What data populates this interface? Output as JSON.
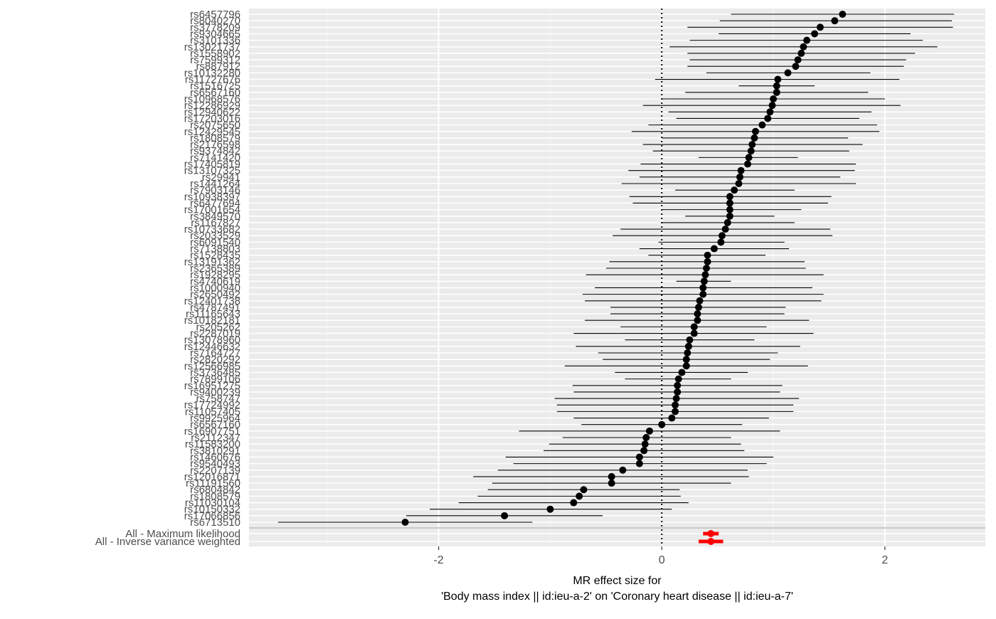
{
  "chart_data": {
    "type": "forest",
    "title": "",
    "xlabel_lines": [
      "MR effect size for",
      "'Body mass index || id:ieu-a-2' on 'Coronary heart disease || id:ieu-a-7'"
    ],
    "ylabel": "",
    "xlim": [
      -3.7,
      2.9
    ],
    "xticks": [
      -2,
      0,
      2
    ],
    "xtick_labels": [
      "-2",
      "0",
      "2"
    ],
    "reference_line": 0,
    "grid": true,
    "colors": {
      "snp": "#000000",
      "summary": "#ff0000",
      "panel": "#ebebeb",
      "grid": "#ffffff",
      "divider": "#c8c8c8",
      "tick_text": "#4d4d4d"
    },
    "snps": [
      {
        "label": "rs6457796",
        "b": 1.62,
        "lo": 0.62,
        "hi": 2.62
      },
      {
        "label": "rs8040270",
        "b": 1.55,
        "lo": 0.52,
        "hi": 2.6
      },
      {
        "label": "rs3778209",
        "b": 1.42,
        "lo": 0.23,
        "hi": 2.61
      },
      {
        "label": "rs9304665",
        "b": 1.37,
        "lo": 0.51,
        "hi": 2.23
      },
      {
        "label": "rs3101336",
        "b": 1.3,
        "lo": 0.25,
        "hi": 2.34
      },
      {
        "label": "rs13021737",
        "b": 1.27,
        "lo": 0.07,
        "hi": 2.47
      },
      {
        "label": "rs1558902",
        "b": 1.25,
        "lo": 0.23,
        "hi": 2.27
      },
      {
        "label": "rs7599312",
        "b": 1.22,
        "lo": 0.25,
        "hi": 2.19
      },
      {
        "label": "rs887912",
        "b": 1.2,
        "lo": 0.23,
        "hi": 2.17
      },
      {
        "label": "rs10132280",
        "b": 1.13,
        "lo": 0.4,
        "hi": 1.87
      },
      {
        "label": "rs11727676",
        "b": 1.04,
        "lo": -0.06,
        "hi": 2.13
      },
      {
        "label": "rs1516725",
        "b": 1.03,
        "lo": 0.69,
        "hi": 1.37
      },
      {
        "label": "rs6567160",
        "b": 1.03,
        "lo": 0.21,
        "hi": 1.85
      },
      {
        "label": "rs10968576",
        "b": 1.0,
        "lo": 0.0,
        "hi": 2.0
      },
      {
        "label": "rs12286929",
        "b": 0.99,
        "lo": -0.17,
        "hi": 2.14
      },
      {
        "label": "rs12940622",
        "b": 0.97,
        "lo": 0.06,
        "hi": 1.88
      },
      {
        "label": "rs17203016",
        "b": 0.95,
        "lo": 0.13,
        "hi": 1.77
      },
      {
        "label": "rs2075650",
        "b": 0.9,
        "lo": -0.12,
        "hi": 1.93
      },
      {
        "label": "rs12429545",
        "b": 0.84,
        "lo": -0.27,
        "hi": 1.95
      },
      {
        "label": "rs1808579",
        "b": 0.83,
        "lo": 0.0,
        "hi": 1.67
      },
      {
        "label": "rs2176598",
        "b": 0.81,
        "lo": -0.17,
        "hi": 1.8
      },
      {
        "label": "rs9374842",
        "b": 0.8,
        "lo": -0.08,
        "hi": 1.68
      },
      {
        "label": "rs7141420",
        "b": 0.78,
        "lo": 0.33,
        "hi": 1.22
      },
      {
        "label": "rs17405819",
        "b": 0.77,
        "lo": -0.19,
        "hi": 1.74
      },
      {
        "label": "rs13107325",
        "b": 0.71,
        "lo": -0.3,
        "hi": 1.73
      },
      {
        "label": "rs29941",
        "b": 0.7,
        "lo": -0.2,
        "hi": 1.6
      },
      {
        "label": "rs1441264",
        "b": 0.69,
        "lo": -0.36,
        "hi": 1.74
      },
      {
        "label": "rs7903146",
        "b": 0.65,
        "lo": 0.12,
        "hi": 1.19
      },
      {
        "label": "rs10938397",
        "b": 0.61,
        "lo": -0.29,
        "hi": 1.52
      },
      {
        "label": "rs6477694",
        "b": 0.61,
        "lo": -0.26,
        "hi": 1.49
      },
      {
        "label": "rs17001654",
        "b": 0.61,
        "lo": 0.0,
        "hi": 1.25
      },
      {
        "label": "rs3849570",
        "b": 0.61,
        "lo": 0.21,
        "hi": 1.01
      },
      {
        "label": "rs1167827",
        "b": 0.59,
        "lo": 0.0,
        "hi": 1.19
      },
      {
        "label": "rs10733682",
        "b": 0.57,
        "lo": -0.37,
        "hi": 1.51
      },
      {
        "label": "rs2033529",
        "b": 0.54,
        "lo": -0.44,
        "hi": 1.53
      },
      {
        "label": "rs6091540",
        "b": 0.53,
        "lo": -0.03,
        "hi": 1.1
      },
      {
        "label": "rs7138803",
        "b": 0.47,
        "lo": -0.2,
        "hi": 1.14
      },
      {
        "label": "rs1528435",
        "b": 0.41,
        "lo": -0.12,
        "hi": 0.93
      },
      {
        "label": "rs13191362",
        "b": 0.41,
        "lo": -0.47,
        "hi": 1.28
      },
      {
        "label": "rs2365389",
        "b": 0.4,
        "lo": -0.5,
        "hi": 1.29
      },
      {
        "label": "rs1928295",
        "b": 0.39,
        "lo": -0.68,
        "hi": 1.45
      },
      {
        "label": "rs4740619",
        "b": 0.38,
        "lo": 0.13,
        "hi": 0.62
      },
      {
        "label": "rs1000940",
        "b": 0.37,
        "lo": -0.6,
        "hi": 1.35
      },
      {
        "label": "rs2650492",
        "b": 0.37,
        "lo": -0.71,
        "hi": 1.45
      },
      {
        "label": "rs12401738",
        "b": 0.34,
        "lo": -0.69,
        "hi": 1.43
      },
      {
        "label": "rs4787491",
        "b": 0.33,
        "lo": -0.46,
        "hi": 1.11
      },
      {
        "label": "rs11165643",
        "b": 0.32,
        "lo": -0.46,
        "hi": 1.1
      },
      {
        "label": "rs10182181",
        "b": 0.32,
        "lo": -0.69,
        "hi": 1.32
      },
      {
        "label": "rs205262",
        "b": 0.29,
        "lo": -0.37,
        "hi": 0.94
      },
      {
        "label": "rs2287019",
        "b": 0.29,
        "lo": -0.79,
        "hi": 1.36
      },
      {
        "label": "rs13078960",
        "b": 0.25,
        "lo": -0.33,
        "hi": 0.83
      },
      {
        "label": "rs12446632",
        "b": 0.24,
        "lo": -0.77,
        "hi": 1.24
      },
      {
        "label": "rs7164727",
        "b": 0.23,
        "lo": -0.57,
        "hi": 1.04
      },
      {
        "label": "rs2820292",
        "b": 0.22,
        "lo": -0.53,
        "hi": 0.97
      },
      {
        "label": "rs12566985",
        "b": 0.22,
        "lo": -0.87,
        "hi": 1.31
      },
      {
        "label": "rs3736485",
        "b": 0.18,
        "lo": -0.42,
        "hi": 0.77
      },
      {
        "label": "rs7899106",
        "b": 0.15,
        "lo": -0.33,
        "hi": 0.62
      },
      {
        "label": "rs16951275",
        "b": 0.14,
        "lo": -0.8,
        "hi": 1.08
      },
      {
        "label": "rs9400239",
        "b": 0.14,
        "lo": -0.79,
        "hi": 1.06
      },
      {
        "label": "rs758747",
        "b": 0.13,
        "lo": -0.96,
        "hi": 1.23
      },
      {
        "label": "rs17724992",
        "b": 0.12,
        "lo": -0.94,
        "hi": 1.18
      },
      {
        "label": "rs11057405",
        "b": 0.12,
        "lo": -0.94,
        "hi": 1.18
      },
      {
        "label": "rs9925964",
        "b": 0.09,
        "lo": -0.79,
        "hi": 0.96
      },
      {
        "label": "rs6567160",
        "b": 0.0,
        "lo": -0.72,
        "hi": 0.72
      },
      {
        "label": "rs16907751",
        "b": -0.11,
        "lo": -1.28,
        "hi": 1.06
      },
      {
        "label": "rs2112347",
        "b": -0.14,
        "lo": -0.89,
        "hi": 0.62
      },
      {
        "label": "rs11583200",
        "b": -0.15,
        "lo": -1.01,
        "hi": 0.71
      },
      {
        "label": "rs3810291",
        "b": -0.16,
        "lo": -1.06,
        "hi": 0.74
      },
      {
        "label": "rs1460676",
        "b": -0.2,
        "lo": -1.4,
        "hi": 1.0
      },
      {
        "label": "rs9540493",
        "b": -0.2,
        "lo": -1.33,
        "hi": 0.94
      },
      {
        "label": "rs2207139",
        "b": -0.35,
        "lo": -1.47,
        "hi": 0.77
      },
      {
        "label": "rs12016871",
        "b": -0.45,
        "lo": -1.69,
        "hi": 0.78
      },
      {
        "label": "rs11191560",
        "b": -0.45,
        "lo": -1.52,
        "hi": 0.62
      },
      {
        "label": "rs6804842",
        "b": -0.7,
        "lo": -1.56,
        "hi": 0.16
      },
      {
        "label": "rs1808579",
        "b": -0.74,
        "lo": -1.65,
        "hi": 0.17
      },
      {
        "label": "rs11030104",
        "b": -0.79,
        "lo": -1.82,
        "hi": 0.24
      },
      {
        "label": "rs10150332",
        "b": -1.0,
        "lo": -2.08,
        "hi": 0.09
      },
      {
        "label": "rs17066856",
        "b": -1.41,
        "lo": -2.29,
        "hi": -0.53
      },
      {
        "label": "rs6713510",
        "b": -2.3,
        "lo": -3.44,
        "hi": -1.16
      }
    ],
    "summary": [
      {
        "label": "All - Maximum likelihood",
        "b": 0.44,
        "lo": 0.37,
        "hi": 0.51
      },
      {
        "label": "All - Inverse variance weighted",
        "b": 0.44,
        "lo": 0.33,
        "hi": 0.55
      }
    ]
  }
}
